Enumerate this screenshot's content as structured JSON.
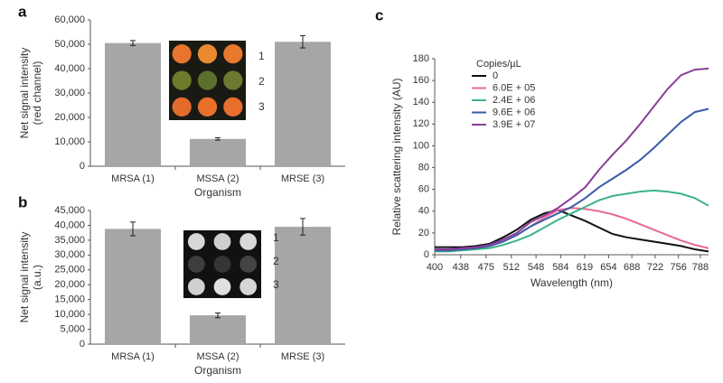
{
  "chart_data": [
    {
      "type": "bar",
      "panel": "a",
      "ylabel": [
        "Net signal intensity",
        "(red channel)"
      ],
      "xlabel": "Organism",
      "categories": [
        "MRSA (1)",
        "MSSA (2)",
        "MRSE (3)"
      ],
      "values": [
        50500,
        11200,
        51000
      ],
      "errors": [
        1000,
        500,
        2500
      ],
      "color": "#a6a6a6",
      "ylim": [
        0,
        60000
      ],
      "yticks": [
        0,
        {
          "value": 10000,
          "label": "10,000"
        },
        {
          "value": 20000,
          "label": "20,000"
        },
        {
          "value": 30000,
          "label": "30,000"
        },
        {
          "value": 40000,
          "label": "40,000"
        },
        {
          "value": 50000,
          "label": "50,000"
        },
        {
          "value": 60000,
          "label": "60,000"
        }
      ],
      "inset_labels": [
        "1",
        "2",
        "3"
      ]
    },
    {
      "type": "bar",
      "panel": "b",
      "ylabel": [
        "Net signal intensity",
        "(a.u.)"
      ],
      "xlabel": "Organism",
      "categories": [
        "MRSA (1)",
        "MSSA (2)",
        "MRSE (3)"
      ],
      "values": [
        38800,
        9700,
        39500
      ],
      "errors": [
        2300,
        800,
        2800
      ],
      "color": "#a6a6a6",
      "ylim": [
        0,
        45000
      ],
      "yticks": [
        0,
        {
          "value": 5000,
          "label": "5,000"
        },
        {
          "value": 10000,
          "label": "10,000"
        },
        {
          "value": 15000,
          "label": "15,000"
        },
        {
          "value": 20000,
          "label": "20,000"
        },
        {
          "value": 25000,
          "label": "25,000"
        },
        {
          "value": 30000,
          "label": "30,000"
        },
        {
          "value": 35000,
          "label": "35,000"
        },
        {
          "value": 40000,
          "label": "40,000"
        },
        {
          "value": 45000,
          "label": "45,000"
        }
      ],
      "inset_labels": [
        "1",
        "2",
        "3"
      ]
    },
    {
      "type": "line",
      "panel": "c",
      "ylabel": "Relative scattering intensity (AU)",
      "xlabel": "Wavelength (nm)",
      "legend_title": "Copies/µL",
      "x": [
        400,
        420,
        440,
        460,
        480,
        500,
        520,
        540,
        560,
        580,
        600,
        620,
        640,
        660,
        680,
        700,
        720,
        740,
        760,
        780,
        800
      ],
      "series": [
        {
          "name": "0",
          "color": "#111111",
          "values": [
            7,
            7,
            7,
            8,
            10,
            16,
            23,
            32,
            38,
            41,
            36,
            31,
            25,
            19,
            16,
            14,
            12,
            10,
            8,
            5,
            3
          ]
        },
        {
          "name": "6.0E + 05",
          "color": "#e8679a",
          "values": [
            4,
            4,
            5,
            6,
            8,
            12,
            18,
            26,
            34,
            41,
            43,
            42,
            40,
            37,
            33,
            28,
            23,
            18,
            13,
            9,
            6
          ]
        },
        {
          "name": "2.4E + 06",
          "color": "#3cb38a",
          "values": [
            3,
            3,
            4,
            5,
            6,
            9,
            13,
            18,
            25,
            32,
            38,
            44,
            50,
            54,
            56,
            58,
            59,
            58,
            56,
            52,
            45
          ]
        },
        {
          "name": "9.6E + 06",
          "color": "#3b5ba8",
          "values": [
            4,
            4,
            5,
            6,
            8,
            12,
            18,
            26,
            32,
            38,
            44,
            52,
            62,
            70,
            78,
            87,
            98,
            110,
            122,
            131,
            134
          ]
        },
        {
          "name": "3.9E + 07",
          "color": "#8a3d98",
          "values": [
            5,
            5,
            6,
            7,
            9,
            14,
            20,
            30,
            36,
            43,
            52,
            62,
            78,
            92,
            105,
            120,
            136,
            152,
            165,
            170,
            171
          ]
        }
      ],
      "xlim": [
        400,
        800
      ],
      "xticks": [
        400,
        438,
        475,
        512,
        548,
        584,
        619,
        654,
        688,
        722,
        756,
        788
      ],
      "ylim": [
        0,
        180
      ],
      "yticks": [
        0,
        20,
        40,
        60,
        80,
        100,
        120,
        140,
        160,
        180
      ]
    }
  ]
}
